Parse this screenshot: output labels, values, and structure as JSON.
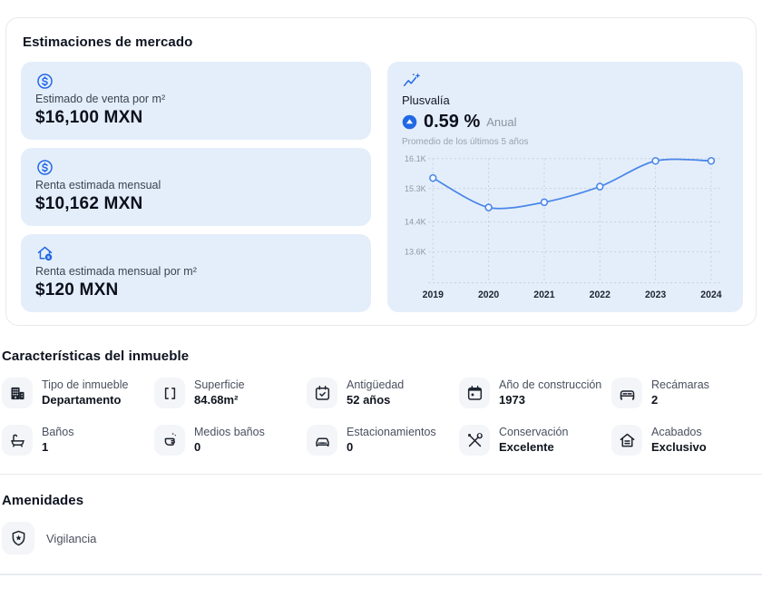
{
  "colors": {
    "accent": "#2268e4",
    "panel_blue": "#e4eefb",
    "line": "#4a86e8",
    "grid": "#c6cedb",
    "marker_fill": "#f4f9ff"
  },
  "market": {
    "title": "Estimaciones de mercado",
    "stats": [
      {
        "icon": "dollar-circle-icon",
        "label": "Estimado de venta por m²",
        "value": "$16,100 MXN"
      },
      {
        "icon": "dollar-circle-icon",
        "label": "Renta estimada mensual",
        "value": "$10,162 MXN"
      },
      {
        "icon": "house-dollar-icon",
        "label": "Renta estimada mensual por m²",
        "value": "$120 MXN"
      }
    ],
    "plusvalia": {
      "icon": "trend-up-icon",
      "title": "Plusvalía",
      "badge_icon": "arrow-up-circle-icon",
      "rate": "0.59 %",
      "rate_suffix": "Anual",
      "subtitle": "Promedio de los últimos 5 años"
    }
  },
  "chart_data": {
    "type": "line",
    "x": [
      "2019",
      "2020",
      "2021",
      "2022",
      "2023",
      "2024"
    ],
    "values": [
      15580,
      14790,
      14930,
      15350,
      16040,
      16040
    ],
    "yticks": [
      {
        "label": "16.1K",
        "value": 16100
      },
      {
        "label": "15.3K",
        "value": 15300
      },
      {
        "label": "14.4K",
        "value": 14400
      },
      {
        "label": "13.6K",
        "value": 13600
      }
    ],
    "ylim": [
      12770,
      16100
    ],
    "grid": "dashed",
    "legend": false
  },
  "features": {
    "title": "Características del inmueble",
    "items": [
      {
        "icon": "building-icon",
        "label": "Tipo de inmueble",
        "value": "Departamento"
      },
      {
        "icon": "area-brackets-icon",
        "label": "Superficie",
        "value": "84.68m²"
      },
      {
        "icon": "calendar-check-icon",
        "label": "Antigüedad",
        "value": "52 años"
      },
      {
        "icon": "calendar-year-icon",
        "label": "Año de construcción",
        "value": "1973"
      },
      {
        "icon": "bed-icon",
        "label": "Recámaras",
        "value": "2"
      },
      {
        "icon": "bathtub-icon",
        "label": "Baños",
        "value": "1"
      },
      {
        "icon": "half-bath-icon",
        "label": "Medios baños",
        "value": "0"
      },
      {
        "icon": "car-icon",
        "label": "Estacionamientos",
        "value": "0"
      },
      {
        "icon": "tools-icon",
        "label": "Conservación",
        "value": "Excelente"
      },
      {
        "icon": "house-finish-icon",
        "label": "Acabados",
        "value": "Exclusivo"
      }
    ]
  },
  "amenities": {
    "title": "Amenidades",
    "items": [
      {
        "icon": "shield-star-icon",
        "label": "Vigilancia"
      }
    ]
  }
}
